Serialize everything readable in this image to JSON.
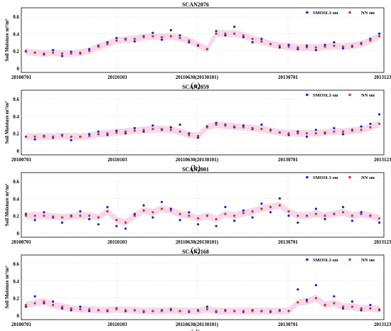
{
  "figure": {
    "ylabel": "Soil Moisture m³/m³",
    "xtick_labels": [
      "20100701",
      "20110103",
      "20110630(20130101)",
      "20130701",
      "20131231"
    ],
    "ytick_labels": [
      "0",
      "0.2",
      "0.4",
      "0.6"
    ],
    "legend": [
      "SMOSL3 sm",
      "NN sm"
    ]
  },
  "colors": {
    "smos": "#1a1ae6",
    "nn": "#cc3a1a",
    "band": "#f2c8e6",
    "grid": "#dcdcdc"
  },
  "chart_data": [
    {
      "type": "scatter",
      "title": "SCAN2076",
      "panel_label": "(a)",
      "ylim": [
        -0.05,
        0.7
      ],
      "xlim": [
        0,
        4
      ],
      "grid": true,
      "legend_position": "top-right",
      "series": [
        {
          "name": "SMOSL3 sm",
          "x": [
            0.05,
            0.15,
            0.25,
            0.35,
            0.45,
            0.55,
            0.65,
            0.75,
            0.85,
            0.95,
            1.05,
            1.15,
            1.25,
            1.35,
            1.45,
            1.55,
            1.65,
            1.75,
            1.85,
            1.95,
            2.05,
            2.15,
            2.25,
            2.35,
            2.45,
            2.55,
            2.65,
            2.75,
            2.85,
            2.95,
            3.05,
            3.15,
            3.25,
            3.35,
            3.45,
            3.55,
            3.65,
            3.75,
            3.85,
            3.95
          ],
          "y": [
            0.2,
            0.18,
            0.16,
            0.21,
            0.14,
            0.19,
            0.17,
            0.22,
            0.26,
            0.3,
            0.35,
            0.34,
            0.31,
            0.37,
            0.41,
            0.33,
            0.44,
            0.38,
            0.3,
            0.26,
            0.22,
            0.43,
            0.38,
            0.48,
            0.36,
            0.3,
            0.34,
            0.28,
            0.24,
            0.27,
            0.22,
            0.26,
            0.21,
            0.27,
            0.3,
            0.23,
            0.25,
            0.29,
            0.34,
            0.4
          ]
        },
        {
          "name": "NN sm",
          "x": [
            0.05,
            0.15,
            0.25,
            0.35,
            0.45,
            0.55,
            0.65,
            0.75,
            0.85,
            0.95,
            1.05,
            1.15,
            1.25,
            1.35,
            1.45,
            1.55,
            1.65,
            1.75,
            1.85,
            1.95,
            2.05,
            2.15,
            2.25,
            2.35,
            2.45,
            2.55,
            2.65,
            2.75,
            2.85,
            2.95,
            3.05,
            3.15,
            3.25,
            3.35,
            3.45,
            3.55,
            3.65,
            3.75,
            3.85,
            3.95
          ],
          "y": [
            0.19,
            0.18,
            0.17,
            0.18,
            0.17,
            0.17,
            0.18,
            0.2,
            0.25,
            0.28,
            0.32,
            0.33,
            0.34,
            0.36,
            0.37,
            0.36,
            0.37,
            0.35,
            0.32,
            0.27,
            0.22,
            0.4,
            0.4,
            0.4,
            0.38,
            0.34,
            0.31,
            0.28,
            0.26,
            0.25,
            0.24,
            0.24,
            0.24,
            0.25,
            0.26,
            0.25,
            0.26,
            0.28,
            0.32,
            0.37
          ]
        }
      ]
    },
    {
      "type": "scatter",
      "title": "SCAN2059",
      "panel_label": "(b)",
      "ylim": [
        -0.05,
        0.7
      ],
      "xlim": [
        0,
        4
      ],
      "grid": true,
      "legend_position": "top-right",
      "series": [
        {
          "name": "SMOSL3 sm",
          "x": [
            0.05,
            0.15,
            0.25,
            0.35,
            0.45,
            0.55,
            0.65,
            0.75,
            0.85,
            0.95,
            1.05,
            1.15,
            1.25,
            1.35,
            1.45,
            1.55,
            1.65,
            1.75,
            1.85,
            1.95,
            2.05,
            2.15,
            2.25,
            2.35,
            2.45,
            2.55,
            2.65,
            2.75,
            2.85,
            2.95,
            3.05,
            3.15,
            3.25,
            3.35,
            3.45,
            3.55,
            3.65,
            3.75,
            3.85,
            3.95
          ],
          "y": [
            0.16,
            0.13,
            0.17,
            0.15,
            0.18,
            0.12,
            0.16,
            0.19,
            0.22,
            0.18,
            0.23,
            0.2,
            0.26,
            0.22,
            0.29,
            0.24,
            0.27,
            0.3,
            0.2,
            0.15,
            0.28,
            0.32,
            0.3,
            0.27,
            0.29,
            0.25,
            0.3,
            0.24,
            0.21,
            0.18,
            0.22,
            0.16,
            0.24,
            0.2,
            0.26,
            0.19,
            0.24,
            0.28,
            0.31,
            0.42
          ]
        },
        {
          "name": "NN sm",
          "x": [
            0.05,
            0.15,
            0.25,
            0.35,
            0.45,
            0.55,
            0.65,
            0.75,
            0.85,
            0.95,
            1.05,
            1.15,
            1.25,
            1.35,
            1.45,
            1.55,
            1.65,
            1.75,
            1.85,
            1.95,
            2.05,
            2.15,
            2.25,
            2.35,
            2.45,
            2.55,
            2.65,
            2.75,
            2.85,
            2.95,
            3.05,
            3.15,
            3.25,
            3.35,
            3.45,
            3.55,
            3.65,
            3.75,
            3.85,
            3.95
          ],
          "y": [
            0.16,
            0.16,
            0.16,
            0.16,
            0.17,
            0.16,
            0.16,
            0.17,
            0.19,
            0.2,
            0.21,
            0.22,
            0.23,
            0.24,
            0.25,
            0.25,
            0.24,
            0.22,
            0.18,
            0.17,
            0.27,
            0.3,
            0.29,
            0.28,
            0.27,
            0.26,
            0.25,
            0.23,
            0.21,
            0.2,
            0.2,
            0.2,
            0.2,
            0.21,
            0.22,
            0.22,
            0.23,
            0.24,
            0.27,
            0.31
          ]
        }
      ]
    },
    {
      "type": "scatter",
      "title": "SCAN2001",
      "panel_label": "(c)",
      "ylim": [
        -0.05,
        0.7
      ],
      "xlim": [
        0,
        4
      ],
      "grid": true,
      "legend_position": "top-right",
      "series": [
        {
          "name": "SMOSL3 sm",
          "x": [
            0.05,
            0.15,
            0.25,
            0.35,
            0.45,
            0.55,
            0.65,
            0.75,
            0.85,
            0.95,
            1.05,
            1.15,
            1.25,
            1.35,
            1.45,
            1.55,
            1.65,
            1.75,
            1.85,
            1.95,
            2.05,
            2.15,
            2.25,
            2.35,
            2.45,
            2.55,
            2.65,
            2.75,
            2.85,
            2.95,
            3.05,
            3.15,
            3.25,
            3.35,
            3.45,
            3.55,
            3.65,
            3.75,
            3.85,
            3.95
          ],
          "y": [
            0.22,
            0.15,
            0.24,
            0.18,
            0.12,
            0.2,
            0.25,
            0.16,
            0.1,
            0.3,
            0.08,
            0.05,
            0.22,
            0.32,
            0.18,
            0.36,
            0.28,
            0.15,
            0.24,
            0.1,
            0.2,
            0.08,
            0.3,
            0.14,
            0.26,
            0.18,
            0.34,
            0.24,
            0.4,
            0.2,
            0.12,
            0.2,
            0.28,
            0.16,
            0.22,
            0.3,
            0.14,
            0.24,
            0.2,
            0.12
          ]
        },
        {
          "name": "NN sm",
          "x": [
            0.05,
            0.15,
            0.25,
            0.35,
            0.45,
            0.55,
            0.65,
            0.75,
            0.85,
            0.95,
            1.05,
            1.15,
            1.25,
            1.35,
            1.45,
            1.55,
            1.65,
            1.75,
            1.85,
            1.95,
            2.05,
            2.15,
            2.25,
            2.35,
            2.45,
            2.55,
            2.65,
            2.75,
            2.85,
            2.95,
            3.05,
            3.15,
            3.25,
            3.35,
            3.45,
            3.55,
            3.65,
            3.75,
            3.85,
            3.95
          ],
          "y": [
            0.2,
            0.2,
            0.2,
            0.19,
            0.18,
            0.19,
            0.2,
            0.2,
            0.18,
            0.25,
            0.15,
            0.12,
            0.2,
            0.26,
            0.24,
            0.28,
            0.26,
            0.22,
            0.2,
            0.17,
            0.2,
            0.16,
            0.22,
            0.2,
            0.23,
            0.25,
            0.28,
            0.3,
            0.32,
            0.25,
            0.2,
            0.2,
            0.22,
            0.2,
            0.22,
            0.24,
            0.2,
            0.22,
            0.2,
            0.17
          ]
        }
      ]
    },
    {
      "type": "scatter",
      "title": "SCAN2168",
      "panel_label": "(d)",
      "ylim": [
        -0.05,
        0.7
      ],
      "xlim": [
        0,
        4
      ],
      "grid": true,
      "legend_position": "top-right",
      "series": [
        {
          "name": "SMOSL3 sm",
          "x": [
            0.05,
            0.15,
            0.25,
            0.35,
            0.45,
            0.55,
            0.65,
            0.75,
            0.85,
            0.95,
            1.05,
            1.15,
            1.25,
            1.35,
            1.45,
            1.55,
            1.65,
            1.75,
            1.85,
            1.95,
            2.05,
            2.15,
            2.25,
            2.35,
            2.45,
            2.55,
            2.65,
            2.75,
            2.85,
            2.95,
            3.05,
            3.15,
            3.25,
            3.35,
            3.45,
            3.55,
            3.65,
            3.75,
            3.85,
            3.95
          ],
          "y": [
            0.1,
            0.22,
            0.14,
            0.16,
            0.08,
            0.06,
            0.1,
            0.05,
            0.06,
            0.05,
            0.08,
            0.05,
            0.06,
            0.04,
            0.05,
            0.06,
            0.07,
            0.05,
            0.04,
            0.06,
            0.1,
            0.04,
            0.06,
            0.05,
            0.04,
            0.06,
            0.05,
            0.04,
            0.06,
            0.05,
            0.3,
            0.18,
            0.35,
            0.12,
            0.22,
            0.08,
            0.16,
            0.06,
            0.12,
            0.06
          ]
        },
        {
          "name": "NN sm",
          "x": [
            0.05,
            0.15,
            0.25,
            0.35,
            0.45,
            0.55,
            0.65,
            0.75,
            0.85,
            0.95,
            1.05,
            1.15,
            1.25,
            1.35,
            1.45,
            1.55,
            1.65,
            1.75,
            1.85,
            1.95,
            2.05,
            2.15,
            2.25,
            2.35,
            2.45,
            2.55,
            2.65,
            2.75,
            2.85,
            2.95,
            3.05,
            3.15,
            3.25,
            3.35,
            3.45,
            3.55,
            3.65,
            3.75,
            3.85,
            3.95
          ],
          "y": [
            0.12,
            0.14,
            0.16,
            0.12,
            0.1,
            0.08,
            0.07,
            0.07,
            0.06,
            0.06,
            0.07,
            0.06,
            0.06,
            0.05,
            0.05,
            0.05,
            0.06,
            0.05,
            0.05,
            0.05,
            0.07,
            0.05,
            0.05,
            0.05,
            0.05,
            0.05,
            0.05,
            0.05,
            0.05,
            0.05,
            0.15,
            0.16,
            0.2,
            0.12,
            0.14,
            0.1,
            0.1,
            0.08,
            0.08,
            0.07
          ]
        }
      ]
    }
  ]
}
